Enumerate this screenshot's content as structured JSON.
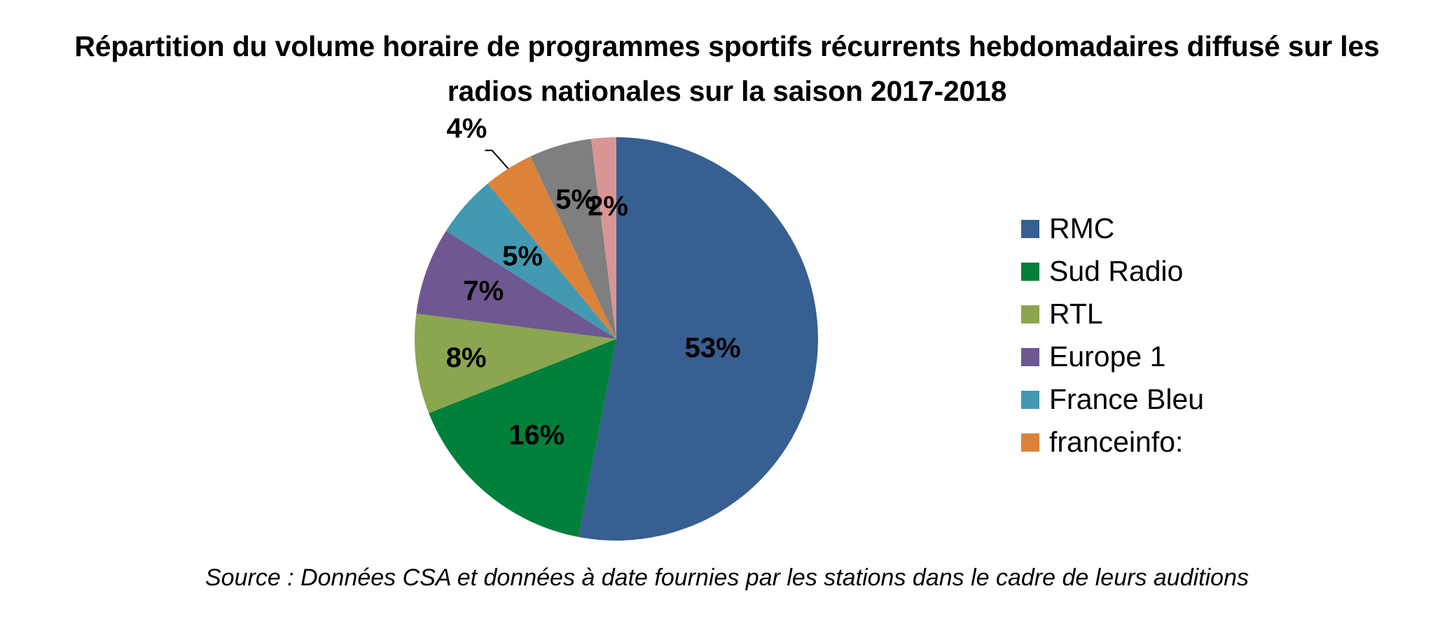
{
  "chart_data": {
    "type": "pie",
    "title": "Répartition du volume horaire de programmes sportifs récurrents hebdomadaires diffusé sur les radios nationales sur la saison 2017-2018",
    "title_lines": [
      "Répartition du volume horaire de programmes sportifs récurrents hebdomadaires diffusé sur les",
      "radios nationales sur la saison 2017-2018"
    ],
    "categories": [
      "RMC",
      "Sud Radio",
      "RTL",
      "Europe 1",
      "France Bleu",
      "franceinfo:",
      "",
      ""
    ],
    "values": [
      53,
      16,
      8,
      7,
      5,
      4,
      5,
      2
    ],
    "labels": [
      "53%",
      "16%",
      "8%",
      "7%",
      "5%",
      "4%",
      "5%",
      "2%"
    ],
    "colors": [
      "#375f91",
      "#00803a",
      "#8ba64e",
      "#6f5891",
      "#4299b1",
      "#dc8339",
      "#7f7f7f",
      "#d99594"
    ],
    "legend_entries": [
      "RMC",
      "Sud Radio",
      "RTL",
      "Europe 1",
      "France Bleu",
      "franceinfo:"
    ],
    "legend_position": "right",
    "start_angle": "12 o'clock",
    "direction": "clockwise",
    "source": "Source : Données CSA et données à date fournies par les stations dans le cadre de leurs auditions"
  }
}
